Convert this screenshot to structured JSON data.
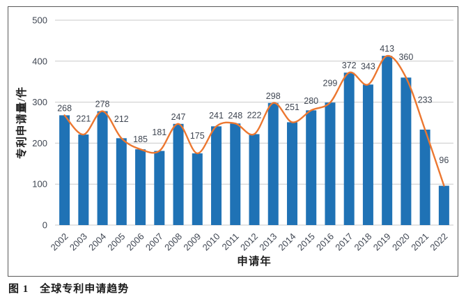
{
  "chart_data": {
    "type": "bar",
    "title": "全球专利申请趋势",
    "categories": [
      "2002",
      "2003",
      "2004",
      "2005",
      "2006",
      "2007",
      "2008",
      "2009",
      "2010",
      "2011",
      "2012",
      "2013",
      "2014",
      "2015",
      "2016",
      "2017",
      "2018",
      "2019",
      "2020",
      "2021",
      "2022"
    ],
    "series": [
      {
        "name": "专利申请量",
        "chart_type": "bar",
        "values": [
          268,
          221,
          278,
          212,
          185,
          181,
          247,
          175,
          241,
          248,
          222,
          298,
          251,
          280,
          299,
          372,
          343,
          413,
          360,
          233,
          96
        ]
      },
      {
        "name": "趋势线",
        "chart_type": "smooth-line",
        "values": [
          268,
          221,
          278,
          212,
          185,
          181,
          247,
          175,
          241,
          248,
          222,
          298,
          251,
          280,
          299,
          372,
          343,
          413,
          360,
          233,
          96
        ]
      }
    ],
    "data_labels": [
      268,
      221,
      278,
      212,
      185,
      181,
      247,
      175,
      241,
      248,
      222,
      298,
      251,
      280,
      299,
      372,
      343,
      413,
      360,
      233,
      96
    ],
    "xlabel": "申请年",
    "ylabel": "专利申请量/件",
    "ylim": [
      0,
      500
    ],
    "yticks": [
      "0",
      "100",
      "200",
      "300",
      "400",
      "500"
    ],
    "grid": true,
    "legend": "none",
    "colors": {
      "bar": "#1F72B5",
      "line": "#EC7730",
      "grid": "#C9C9C9",
      "tick_label": "#3F4652",
      "data_label": "#3F4652",
      "axis_title": "#1F1F1F",
      "frame_border": "#595959"
    }
  },
  "caption": {
    "figure_label": "图 1",
    "figure_title": "全球专利申请趋势"
  }
}
